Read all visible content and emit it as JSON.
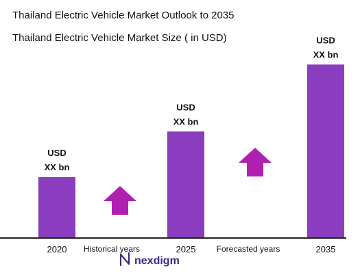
{
  "title": "Thailand Electric Vehicle Market Outlook to 2035",
  "subtitle": "Thailand Electric Vehicle Market Size ( in USD)",
  "colors": {
    "bar": "#8a3dbe",
    "arrow": "#b020b0",
    "axis": "#222222"
  },
  "chart_data": {
    "type": "bar",
    "categories": [
      "2020",
      "2025",
      "2035"
    ],
    "values": [
      1,
      1.75,
      2.85
    ],
    "value_labels": [
      [
        "USD",
        "XX bn"
      ],
      [
        "USD",
        "XX bn"
      ],
      [
        "USD",
        "XX bn"
      ]
    ],
    "xlabel": "",
    "ylabel": "",
    "grid": false,
    "annotations": [
      {
        "text": "Historical years",
        "icon": "up-arrow-icon"
      },
      {
        "text": "Forecasted years",
        "icon": "up-arrow-icon"
      }
    ]
  },
  "logo": {
    "text": "nexdigm",
    "icon": "nexdigm-logo-icon"
  }
}
